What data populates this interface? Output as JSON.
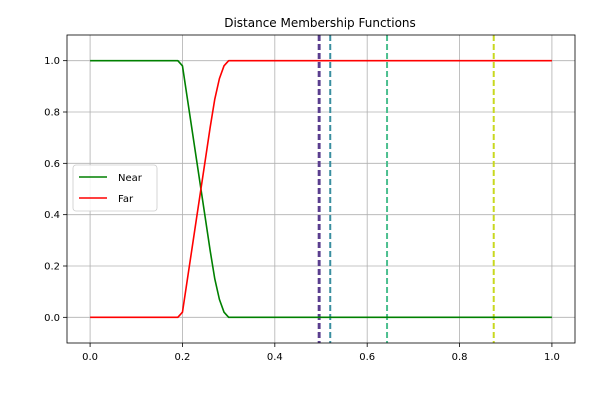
{
  "chart_data": {
    "type": "line",
    "title": "Distance Membership Functions",
    "xlabel": "",
    "ylabel": "",
    "xlim": [
      -0.05,
      1.05
    ],
    "ylim": [
      -0.1,
      1.1
    ],
    "xticks": [
      0.0,
      0.2,
      0.4,
      0.6,
      0.8,
      1.0
    ],
    "xtick_labels": [
      "0.0",
      "0.2",
      "0.4",
      "0.6",
      "0.8",
      "1.0"
    ],
    "yticks": [
      0.0,
      0.2,
      0.4,
      0.6,
      0.8,
      1.0
    ],
    "ytick_labels": [
      "0.0",
      "0.2",
      "0.4",
      "0.6",
      "0.8",
      "1.0"
    ],
    "grid": true,
    "legend_position": "center-left",
    "series": [
      {
        "name": "Near",
        "color": "#008000",
        "x": [
          0.0,
          0.19,
          0.2,
          0.21,
          0.22,
          0.23,
          0.24,
          0.25,
          0.26,
          0.27,
          0.28,
          0.29,
          0.3,
          1.0
        ],
        "y": [
          1.0,
          1.0,
          0.98,
          0.86,
          0.74,
          0.62,
          0.5,
          0.38,
          0.26,
          0.15,
          0.07,
          0.02,
          0.0,
          0.0
        ]
      },
      {
        "name": "Far",
        "color": "#ff0000",
        "x": [
          0.0,
          0.19,
          0.2,
          0.21,
          0.22,
          0.23,
          0.24,
          0.25,
          0.26,
          0.27,
          0.28,
          0.29,
          0.3,
          1.0
        ],
        "y": [
          0.0,
          0.0,
          0.02,
          0.14,
          0.26,
          0.38,
          0.5,
          0.62,
          0.74,
          0.85,
          0.93,
          0.98,
          1.0,
          1.0
        ]
      }
    ],
    "vertical_lines": [
      {
        "x": 0.495,
        "color": "#5b3f8f",
        "style": "dashed"
      },
      {
        "x": 0.497,
        "color": "#5b3f8f",
        "style": "dashed"
      },
      {
        "x": 0.52,
        "color": "#3a8fa0",
        "style": "dashed"
      },
      {
        "x": 0.643,
        "color": "#4bbf8f",
        "style": "dashed"
      },
      {
        "x": 0.874,
        "color": "#c8d820",
        "style": "dashed"
      }
    ]
  }
}
